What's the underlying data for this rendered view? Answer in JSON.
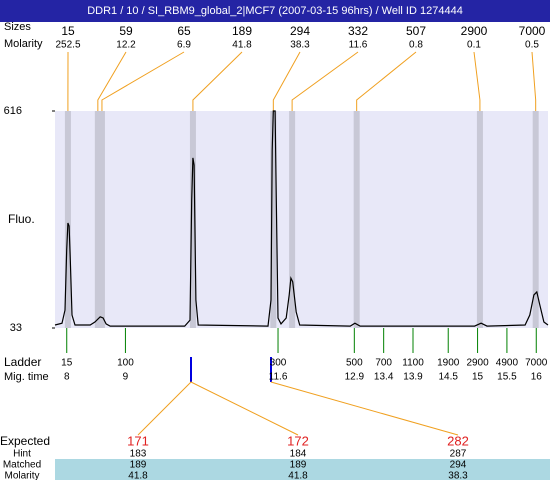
{
  "chart_data": {
    "type": "line",
    "title": "DDR1 / 10 / SI_RBM9_global_2|MCF7 (2007-03-15 96hrs) / Well ID 1274444",
    "ylabel": "Fluo.",
    "ylim": [
      33,
      616
    ],
    "yticks": [
      33,
      616
    ],
    "xlim": [
      7.8,
      16.2
    ],
    "x": [
      7.8,
      7.92,
      7.97,
      8.0,
      8.02,
      8.04,
      8.06,
      8.09,
      8.14,
      8.4,
      8.48,
      8.57,
      8.62,
      8.67,
      8.74,
      10.01,
      10.1,
      10.13,
      10.15,
      10.17,
      10.2,
      10.24,
      11.43,
      11.48,
      11.5,
      11.52,
      11.55,
      11.57,
      11.6,
      11.65,
      11.74,
      11.79,
      11.82,
      11.85,
      11.91,
      11.97,
      12.83,
      12.91,
      13.0,
      14.95,
      15.06,
      15.16,
      15.81,
      15.89,
      15.96,
      16.01,
      16.06,
      16.13,
      16.2
    ],
    "values": [
      41,
      46,
      81,
      243,
      315,
      307,
      216,
      68,
      41,
      41,
      49,
      63,
      60,
      44,
      38,
      38,
      54,
      377,
      490,
      471,
      108,
      41,
      38,
      108,
      511,
      616,
      616,
      377,
      60,
      44,
      60,
      122,
      167,
      157,
      76,
      41,
      38,
      46,
      38,
      38,
      46,
      38,
      41,
      68,
      122,
      130,
      95,
      49,
      41
    ],
    "color": "#000000",
    "peaks": {
      "label": "Sizes",
      "molarity_label": "Molarity",
      "sizes": [
        15,
        59,
        65,
        189,
        294,
        332,
        507,
        2900,
        7000
      ],
      "molarity": [
        252.5,
        12.2,
        6.9,
        41.8,
        38.3,
        11.6,
        0.8,
        0.1,
        0.5
      ],
      "x": [
        8.02,
        8.53,
        8.6,
        10.15,
        11.52,
        11.84,
        12.94,
        15.04,
        15.99
      ]
    },
    "ladder": {
      "label": "Ladder",
      "time_label": "Mig. time",
      "sizes": [
        15,
        100,
        300,
        500,
        700,
        1100,
        1900,
        2900,
        4900,
        7000
      ],
      "mig_times": [
        8,
        9,
        11.6,
        12.9,
        13.4,
        13.9,
        14.5,
        15,
        15.5,
        16
      ]
    },
    "expected": {
      "row_labels": [
        "Expected",
        "Hint",
        "Matched",
        "Molarity"
      ],
      "expected": [
        171,
        172,
        282
      ],
      "hint": [
        183,
        184,
        287
      ],
      "matched": [
        189,
        189,
        294
      ],
      "molarity": [
        41.8,
        41.8,
        38.3
      ]
    }
  }
}
